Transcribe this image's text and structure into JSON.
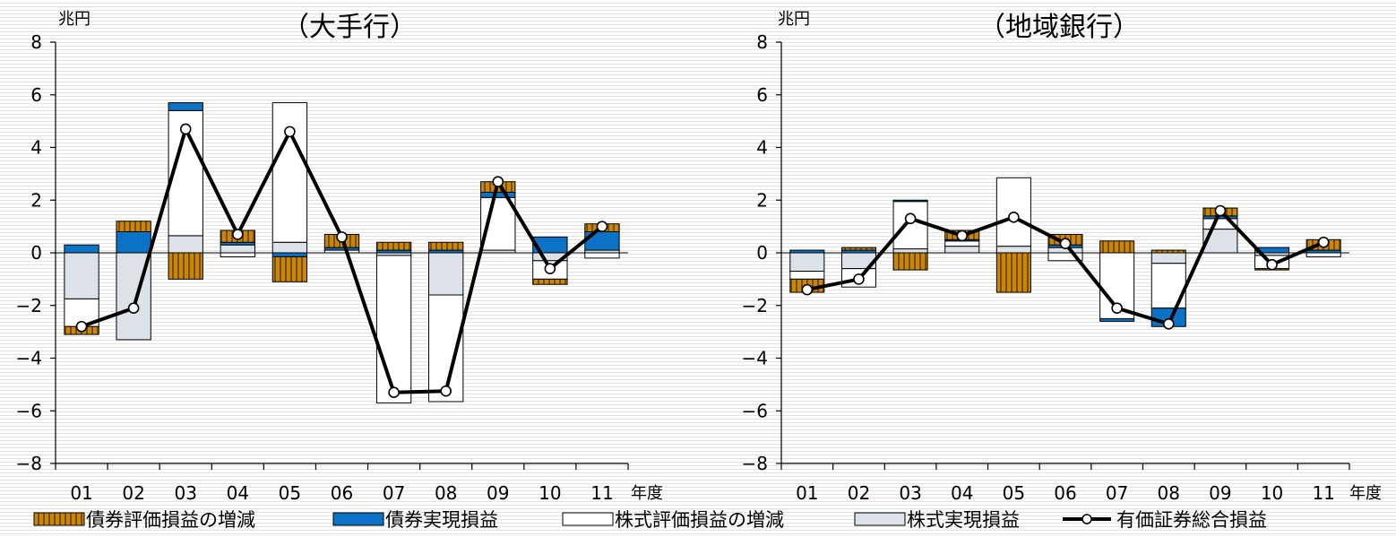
{
  "legend": {
    "items": [
      {
        "key": "bond_valuation",
        "label": "債券評価損益の増減"
      },
      {
        "key": "bond_realized",
        "label": "債券実現損益"
      },
      {
        "key": "stock_valuation",
        "label": "株式評価損益の増減"
      },
      {
        "key": "stock_realized",
        "label": "株式実現損益"
      },
      {
        "key": "total",
        "label": "有価証券総合損益"
      }
    ]
  },
  "colors": {
    "bond_valuation": "#c8860a",
    "bond_valuation_stripe": "#7a4e00",
    "bond_realized": "#0b72c5",
    "stock_valuation": "#ffffff",
    "stock_realized": "#dde1e8",
    "total_line": "#000000",
    "bar_stroke": "#000000"
  },
  "chart_data": [
    {
      "type": "bar",
      "stacked": true,
      "title": "（大手行）",
      "ylabel": "兆円",
      "xlabel": "年度",
      "ylim": [
        -8,
        8
      ],
      "yticks": [
        8,
        6,
        4,
        2,
        0,
        -2,
        -4,
        -6,
        -8
      ],
      "ytick_labels": [
        "8",
        "6",
        "4",
        "2",
        "0",
        "−2",
        "−4",
        "−6",
        "−8"
      ],
      "categories": [
        "01",
        "02",
        "03",
        "04",
        "05",
        "06",
        "07",
        "08",
        "09",
        "10",
        "11"
      ],
      "series": [
        {
          "key": "stock_realized",
          "name": "株式実現損益",
          "values": [
            -1.75,
            -3.3,
            0.65,
            0.3,
            0.4,
            0.0,
            -0.1,
            -1.6,
            0.1,
            -0.3,
            0.1
          ]
        },
        {
          "key": "stock_valuation",
          "name": "株式評価損益の増減",
          "values": [
            -1.05,
            0.0,
            4.75,
            -0.15,
            5.3,
            0.1,
            -5.6,
            -4.05,
            2.0,
            -0.7,
            -0.2
          ]
        },
        {
          "key": "bond_realized",
          "name": "債券実現損益",
          "values": [
            0.3,
            0.8,
            0.3,
            0.1,
            -0.15,
            0.1,
            0.1,
            0.1,
            0.2,
            0.6,
            0.7
          ]
        },
        {
          "key": "bond_valuation",
          "name": "債券評価損益の増減",
          "values": [
            -0.3,
            0.4,
            -1.0,
            0.45,
            -0.95,
            0.5,
            0.3,
            0.3,
            0.4,
            -0.2,
            0.3
          ]
        }
      ],
      "line": {
        "key": "total",
        "name": "有価証券総合損益",
        "values": [
          -2.8,
          -2.1,
          4.7,
          0.7,
          4.6,
          0.6,
          -5.3,
          -5.25,
          2.7,
          -0.6,
          1.0
        ]
      }
    },
    {
      "type": "bar",
      "stacked": true,
      "title": "（地域銀行）",
      "ylabel": "兆円",
      "xlabel": "年度",
      "ylim": [
        -8,
        8
      ],
      "yticks": [
        8,
        6,
        4,
        2,
        0,
        -2,
        -4,
        -6,
        -8
      ],
      "ytick_labels": [
        "8",
        "6",
        "4",
        "2",
        "0",
        "−2",
        "−4",
        "−6",
        "−8"
      ],
      "categories": [
        "01",
        "02",
        "03",
        "04",
        "05",
        "06",
        "07",
        "08",
        "09",
        "10",
        "11"
      ],
      "series": [
        {
          "key": "stock_realized",
          "name": "株式実現損益",
          "values": [
            -0.7,
            -0.6,
            0.15,
            0.25,
            0.25,
            0.2,
            0.0,
            -0.4,
            0.9,
            -0.1,
            0.0
          ]
        },
        {
          "key": "stock_valuation",
          "name": "株式評価損益の増減",
          "values": [
            -0.3,
            -0.7,
            1.8,
            0.2,
            2.6,
            -0.3,
            -2.5,
            -1.7,
            0.4,
            -0.5,
            -0.15
          ]
        },
        {
          "key": "bond_realized",
          "name": "債券実現損益",
          "values": [
            0.1,
            0.1,
            0.05,
            0.05,
            0.0,
            0.1,
            -0.1,
            -0.7,
            0.1,
            0.2,
            0.1
          ]
        },
        {
          "key": "bond_valuation",
          "name": "債券評価損益の増減",
          "values": [
            -0.5,
            0.1,
            -0.65,
            0.35,
            -1.5,
            0.4,
            0.45,
            0.1,
            0.3,
            -0.05,
            0.4
          ]
        }
      ],
      "line": {
        "key": "total",
        "name": "有価証券総合損益",
        "values": [
          -1.4,
          -1.0,
          1.3,
          0.65,
          1.35,
          0.35,
          -2.1,
          -2.7,
          1.6,
          -0.45,
          0.4
        ]
      }
    }
  ]
}
